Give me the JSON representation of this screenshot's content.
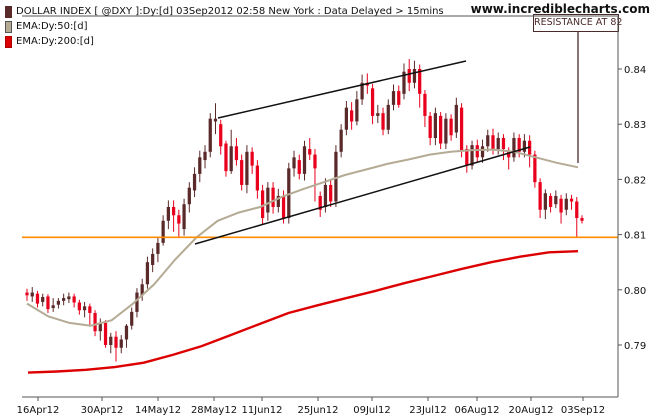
{
  "header": {
    "title": "DOLLAR INDEX [ @DXY ]:Dy:[d]  03Sep2012 02:58 New York : Data Delayed > 15mins",
    "watermark": "www.incrediblecharts.com"
  },
  "legend": [
    {
      "label": "EMA:Dy:50:[d]",
      "color": "#b5ab95"
    },
    {
      "label": "EMA:Dy:200:[d]",
      "color": "#dd0000"
    }
  ],
  "colors": {
    "up": "#5a2a2a",
    "down": "#e8001c",
    "ema50": "#b5ab95",
    "ema200": "#dd0000",
    "resistance": "#ff8c00",
    "trendline": "#111111",
    "annotation": "#4a2b2b"
  },
  "chart_data": {
    "type": "candlestick",
    "title": "DOLLAR INDEX [ @DXY ]:Dy:[d]  03Sep2012 02:58 New York : Data Delayed > 15mins",
    "ylim": [
      0.785,
      0.846
    ],
    "y_ticks": [
      "0.84",
      "0.83",
      "0.82",
      "0.81",
      "0.80",
      "0.79"
    ],
    "x_ticks": [
      "16Apr12",
      "30Apr12",
      "14May12",
      "28May12",
      "11Jun12",
      "25Jun12",
      "09Jul12",
      "23Jul12",
      "06Aug12",
      "20Aug12",
      "03Sep12"
    ],
    "grid": false,
    "candles": [
      [
        0.7995,
        0.799,
        0.8002,
        0.798
      ],
      [
        0.7988,
        0.7995,
        0.8005,
        0.7978
      ],
      [
        0.7993,
        0.7975,
        0.7998,
        0.7968
      ],
      [
        0.7978,
        0.7987,
        0.7993,
        0.797
      ],
      [
        0.7988,
        0.7965,
        0.7992,
        0.7958
      ],
      [
        0.7967,
        0.7972,
        0.7985,
        0.796
      ],
      [
        0.7973,
        0.798,
        0.7985,
        0.7966
      ],
      [
        0.798,
        0.7985,
        0.7993,
        0.7972
      ],
      [
        0.7983,
        0.7988,
        0.7995,
        0.7976
      ],
      [
        0.7988,
        0.7977,
        0.7993,
        0.7968
      ],
      [
        0.7977,
        0.7963,
        0.7982,
        0.7955
      ],
      [
        0.7963,
        0.797,
        0.7978,
        0.795
      ],
      [
        0.797,
        0.7958,
        0.7975,
        0.7935
      ],
      [
        0.7958,
        0.7925,
        0.7963,
        0.7916
      ],
      [
        0.7925,
        0.794,
        0.7948,
        0.7908
      ],
      [
        0.794,
        0.79,
        0.7945,
        0.7895
      ],
      [
        0.79,
        0.7915,
        0.7922,
        0.7885
      ],
      [
        0.7915,
        0.7895,
        0.7925,
        0.787
      ],
      [
        0.7895,
        0.791,
        0.7918,
        0.7885
      ],
      [
        0.791,
        0.7935,
        0.7938,
        0.7895
      ],
      [
        0.7935,
        0.796,
        0.7968,
        0.7928
      ],
      [
        0.796,
        0.7995,
        0.8003,
        0.795
      ],
      [
        0.799,
        0.801,
        0.802,
        0.798
      ],
      [
        0.801,
        0.805,
        0.806,
        0.8002
      ],
      [
        0.8045,
        0.8065,
        0.8075,
        0.8032
      ],
      [
        0.8065,
        0.8085,
        0.8095,
        0.805
      ],
      [
        0.8085,
        0.8125,
        0.8135,
        0.808
      ],
      [
        0.8125,
        0.815,
        0.8162,
        0.811
      ],
      [
        0.815,
        0.8135,
        0.8162,
        0.8105
      ],
      [
        0.8135,
        0.812,
        0.8145,
        0.8095
      ],
      [
        0.811,
        0.8155,
        0.8165,
        0.8098
      ],
      [
        0.8155,
        0.8185,
        0.8195,
        0.814
      ],
      [
        0.818,
        0.821,
        0.8222,
        0.8168
      ],
      [
        0.821,
        0.824,
        0.8252,
        0.8195
      ],
      [
        0.8235,
        0.825,
        0.8262,
        0.822
      ],
      [
        0.825,
        0.831,
        0.832,
        0.824
      ],
      [
        0.8305,
        0.831,
        0.8338,
        0.8282
      ],
      [
        0.83,
        0.826,
        0.8308,
        0.8245
      ],
      [
        0.8265,
        0.8215,
        0.827,
        0.8205
      ],
      [
        0.8215,
        0.826,
        0.829,
        0.821
      ],
      [
        0.826,
        0.8235,
        0.8275,
        0.8225
      ],
      [
        0.8235,
        0.819,
        0.8245,
        0.818
      ],
      [
        0.819,
        0.825,
        0.8262,
        0.8175
      ],
      [
        0.825,
        0.8225,
        0.8258,
        0.821
      ],
      [
        0.8225,
        0.818,
        0.8235,
        0.8165
      ],
      [
        0.818,
        0.813,
        0.819,
        0.8118
      ],
      [
        0.814,
        0.8185,
        0.8195,
        0.8125
      ],
      [
        0.8185,
        0.815,
        0.8195,
        0.8138
      ],
      [
        0.815,
        0.817,
        0.8183,
        0.814
      ],
      [
        0.817,
        0.813,
        0.818,
        0.812
      ],
      [
        0.813,
        0.822,
        0.823,
        0.812
      ],
      [
        0.822,
        0.824,
        0.8252,
        0.8205
      ],
      [
        0.8235,
        0.821,
        0.8245,
        0.82
      ],
      [
        0.821,
        0.826,
        0.827,
        0.8198
      ],
      [
        0.8255,
        0.8245,
        0.8275,
        0.8235
      ],
      [
        0.8245,
        0.822,
        0.8255,
        0.816
      ],
      [
        0.817,
        0.8145,
        0.8178,
        0.8132
      ],
      [
        0.815,
        0.819,
        0.8202,
        0.814
      ],
      [
        0.819,
        0.816,
        0.82,
        0.815
      ],
      [
        0.816,
        0.825,
        0.8262,
        0.815
      ],
      [
        0.825,
        0.829,
        0.83,
        0.824
      ],
      [
        0.829,
        0.833,
        0.8342,
        0.828
      ],
      [
        0.8325,
        0.8305,
        0.834,
        0.829
      ],
      [
        0.8305,
        0.8345,
        0.836,
        0.8298
      ],
      [
        0.8345,
        0.8375,
        0.839,
        0.8335
      ],
      [
        0.8375,
        0.837,
        0.8392,
        0.8355
      ],
      [
        0.8365,
        0.8315,
        0.8373,
        0.83
      ],
      [
        0.8315,
        0.832,
        0.8335,
        0.8302
      ],
      [
        0.832,
        0.829,
        0.833,
        0.828
      ],
      [
        0.829,
        0.8335,
        0.8345,
        0.8282
      ],
      [
        0.8335,
        0.836,
        0.8372,
        0.8325
      ],
      [
        0.836,
        0.8335,
        0.837,
        0.833
      ],
      [
        0.8355,
        0.8395,
        0.841,
        0.8345
      ],
      [
        0.84,
        0.8375,
        0.8418,
        0.836
      ],
      [
        0.8375,
        0.84,
        0.8415,
        0.8365
      ],
      [
        0.84,
        0.8355,
        0.8408,
        0.833
      ],
      [
        0.8355,
        0.8315,
        0.8362,
        0.8295
      ],
      [
        0.8315,
        0.8275,
        0.8322,
        0.8262
      ],
      [
        0.8275,
        0.832,
        0.833,
        0.8262
      ],
      [
        0.8315,
        0.8265,
        0.8322,
        0.8255
      ],
      [
        0.8265,
        0.831,
        0.832,
        0.8255
      ],
      [
        0.831,
        0.828,
        0.8318,
        0.827
      ],
      [
        0.8285,
        0.8335,
        0.8348,
        0.8275
      ],
      [
        0.833,
        0.825,
        0.8338,
        0.824
      ],
      [
        0.8255,
        0.8225,
        0.8262,
        0.8212
      ],
      [
        0.8225,
        0.8262,
        0.827,
        0.8218
      ],
      [
        0.8262,
        0.824,
        0.8272,
        0.8232
      ],
      [
        0.824,
        0.826,
        0.8272,
        0.823
      ],
      [
        0.826,
        0.828,
        0.829,
        0.825
      ],
      [
        0.828,
        0.8255,
        0.8292,
        0.8245
      ],
      [
        0.8255,
        0.8275,
        0.8285,
        0.8245
      ],
      [
        0.8275,
        0.8255,
        0.8282,
        0.8235
      ],
      [
        0.825,
        0.824,
        0.8258,
        0.8218
      ],
      [
        0.824,
        0.8275,
        0.8285,
        0.8232
      ],
      [
        0.8275,
        0.825,
        0.8282,
        0.824
      ],
      [
        0.825,
        0.827,
        0.8282,
        0.824
      ],
      [
        0.827,
        0.8245,
        0.828,
        0.8222
      ],
      [
        0.8245,
        0.8195,
        0.8252,
        0.8185
      ],
      [
        0.8195,
        0.8145,
        0.8202,
        0.813
      ],
      [
        0.8145,
        0.8175,
        0.8182,
        0.8128
      ],
      [
        0.817,
        0.815,
        0.8175,
        0.814
      ],
      [
        0.8155,
        0.817,
        0.818,
        0.8148
      ],
      [
        0.8165,
        0.814,
        0.8172,
        0.812
      ],
      [
        0.8145,
        0.8165,
        0.8175,
        0.8135
      ],
      [
        0.8165,
        0.816,
        0.8172,
        0.8145
      ],
      [
        0.816,
        0.813,
        0.8168,
        0.8095
      ],
      [
        0.813,
        0.8125,
        0.8135,
        0.812
      ]
    ],
    "series": [
      {
        "name": "EMA:Dy:50:[d]",
        "values": [
          0.7975,
          0.7952,
          0.794,
          0.7935,
          0.7945,
          0.7975,
          0.801,
          0.8055,
          0.8095,
          0.8125,
          0.814,
          0.815,
          0.8168,
          0.8182,
          0.8195,
          0.8208,
          0.8218,
          0.8228,
          0.8236,
          0.8245,
          0.825,
          0.8253,
          0.8254,
          0.825,
          0.824,
          0.823,
          0.8222
        ]
      },
      {
        "name": "EMA:Dy:200:[d]",
        "values": [
          0.785,
          0.7852,
          0.7855,
          0.786,
          0.7868,
          0.7882,
          0.7898,
          0.7918,
          0.7938,
          0.7958,
          0.7972,
          0.7985,
          0.7998,
          0.8012,
          0.8025,
          0.8038,
          0.805,
          0.806,
          0.8068,
          0.807
        ]
      }
    ],
    "resistance_level": 0.8095,
    "annotations": [
      "RESISTANCE AT 82"
    ]
  }
}
